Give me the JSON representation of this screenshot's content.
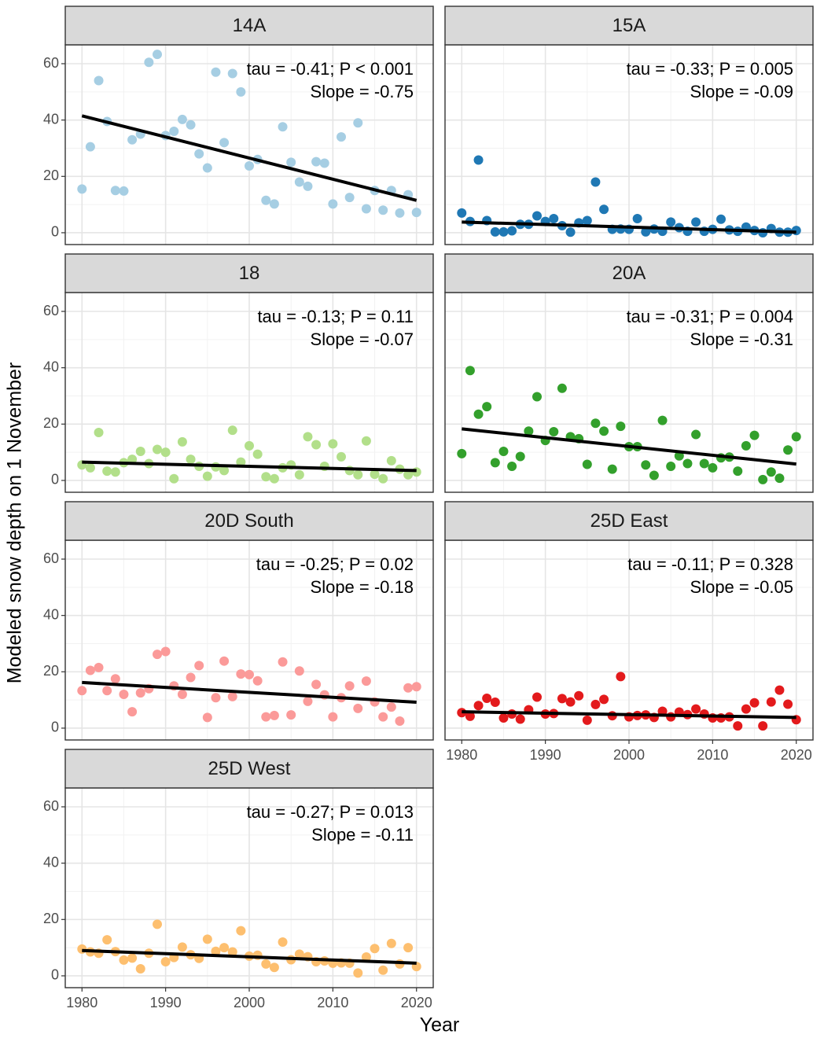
{
  "axis_labels": {
    "x": "Year",
    "y": "Modeled snow depth on 1 November"
  },
  "chart_data": [
    {
      "type": "scatter",
      "title": "14A",
      "color": "#a6cee3",
      "x": [
        1980,
        1981,
        1982,
        1983,
        1984,
        1985,
        1986,
        1987,
        1988,
        1989,
        1990,
        1991,
        1992,
        1993,
        1994,
        1995,
        1996,
        1997,
        1998,
        1999,
        2000,
        2001,
        2002,
        2003,
        2004,
        2005,
        2006,
        2007,
        2008,
        2009,
        2010,
        2011,
        2012,
        2013,
        2014,
        2015,
        2016,
        2017,
        2018,
        2019,
        2020
      ],
      "values": [
        15.5,
        30.5,
        54,
        39.5,
        15,
        14.8,
        33,
        35,
        60.5,
        63.3,
        34.5,
        36,
        40.2,
        38.3,
        28,
        23,
        57,
        32,
        56.5,
        50,
        23.7,
        26,
        11.5,
        10.2,
        37.6,
        25,
        18,
        16.5,
        25.2,
        24.7,
        10.2,
        34,
        12.5,
        39,
        8.5,
        15,
        8,
        15,
        7,
        13.5,
        7.2
      ],
      "trend": {
        "x": [
          1980,
          2020
        ],
        "values": [
          41.5,
          11.5
        ],
        "color": "#000000"
      },
      "annotations": [
        "tau = -0.41; P < 0.001",
        "Slope = -0.75"
      ],
      "xlim": [
        1978,
        2022
      ],
      "xticks": [
        1980,
        1990,
        2000,
        2010,
        2020
      ],
      "ylim": [
        -4.2,
        66.7
      ],
      "yticks": [
        0,
        20,
        40,
        60
      ],
      "grid": true
    },
    {
      "type": "scatter",
      "title": "15A",
      "color": "#1f78b4",
      "x": [
        1980,
        1981,
        1982,
        1983,
        1984,
        1985,
        1986,
        1987,
        1988,
        1989,
        1990,
        1991,
        1992,
        1993,
        1994,
        1995,
        1996,
        1997,
        1998,
        1999,
        2000,
        2001,
        2002,
        2003,
        2004,
        2005,
        2006,
        2007,
        2008,
        2009,
        2010,
        2011,
        2012,
        2013,
        2014,
        2015,
        2016,
        2017,
        2018,
        2019,
        2020
      ],
      "values": [
        7,
        4,
        25.8,
        4.3,
        0.3,
        0.3,
        0.7,
        3,
        3,
        6,
        4,
        5,
        2.5,
        0.2,
        3.5,
        4.3,
        18,
        8.3,
        1.2,
        1.3,
        1.2,
        5,
        0.3,
        1.3,
        0.5,
        3.8,
        1.8,
        0.5,
        3.8,
        0.5,
        1.2,
        4.8,
        1,
        0.5,
        2,
        0.8,
        0,
        1.5,
        0.2,
        0.2,
        0.8
      ],
      "trend": {
        "x": [
          1980,
          2020
        ],
        "values": [
          3.8,
          0.2
        ],
        "color": "#000000"
      },
      "annotations": [
        "tau = -0.33; P = 0.005",
        "Slope = -0.09"
      ],
      "xlim": [
        1978,
        2022
      ],
      "xticks": [
        1980,
        1990,
        2000,
        2010,
        2020
      ],
      "ylim": [
        -4.2,
        66.7
      ],
      "yticks": [
        0,
        20,
        40,
        60
      ],
      "grid": true
    },
    {
      "type": "scatter",
      "title": "18",
      "color": "#b2df8a",
      "x": [
        1980,
        1981,
        1982,
        1983,
        1984,
        1985,
        1986,
        1987,
        1988,
        1989,
        1990,
        1991,
        1992,
        1993,
        1994,
        1995,
        1996,
        1997,
        1998,
        1999,
        2000,
        2001,
        2002,
        2003,
        2004,
        2005,
        2006,
        2007,
        2008,
        2009,
        2010,
        2011,
        2012,
        2013,
        2014,
        2015,
        2016,
        2017,
        2018,
        2019,
        2020
      ],
      "values": [
        5.5,
        4.5,
        17,
        3.3,
        3,
        6.3,
        7.5,
        10.3,
        6,
        11,
        10,
        0.6,
        13.7,
        7.5,
        5,
        1.5,
        4.8,
        3.5,
        17.8,
        6.5,
        12.3,
        9.3,
        1.3,
        0.6,
        4.5,
        5.5,
        2,
        15.5,
        12.7,
        5,
        13,
        8.4,
        3.5,
        2,
        14,
        2.2,
        0.6,
        7,
        4,
        2,
        3
      ],
      "trend": {
        "x": [
          1980,
          2020
        ],
        "values": [
          6.5,
          3.5
        ],
        "color": "#000000"
      },
      "annotations": [
        "tau = -0.13; P = 0.11",
        "Slope = -0.07"
      ],
      "xlim": [
        1978,
        2022
      ],
      "xticks": [
        1980,
        1990,
        2000,
        2010,
        2020
      ],
      "ylim": [
        -4.2,
        66.7
      ],
      "yticks": [
        0,
        20,
        40,
        60
      ],
      "grid": true
    },
    {
      "type": "scatter",
      "title": "20A",
      "color": "#33a02c",
      "x": [
        1980,
        1981,
        1982,
        1983,
        1984,
        1985,
        1986,
        1987,
        1988,
        1989,
        1990,
        1991,
        1992,
        1993,
        1994,
        1995,
        1996,
        1997,
        1998,
        1999,
        2000,
        2001,
        2002,
        2003,
        2004,
        2005,
        2006,
        2007,
        2008,
        2009,
        2010,
        2011,
        2012,
        2013,
        2014,
        2015,
        2016,
        2017,
        2018,
        2019,
        2020
      ],
      "values": [
        9.5,
        39,
        23.5,
        26.2,
        6.3,
        10.3,
        5,
        8.5,
        17.5,
        29.7,
        14.2,
        17.3,
        32.7,
        15.5,
        14.8,
        5.7,
        20.3,
        17.5,
        4,
        19.2,
        12,
        12,
        5.5,
        1.8,
        21.3,
        5,
        8.7,
        6,
        16.3,
        6,
        4.5,
        8,
        8.3,
        3.3,
        12.3,
        16,
        0.3,
        3,
        0.8,
        10.8,
        15.5
      ],
      "trend": {
        "x": [
          1980,
          2020
        ],
        "values": [
          18.3,
          5.8
        ],
        "color": "#000000"
      },
      "annotations": [
        "tau = -0.31; P = 0.004",
        "Slope = -0.31"
      ],
      "xlim": [
        1978,
        2022
      ],
      "xticks": [
        1980,
        1990,
        2000,
        2010,
        2020
      ],
      "ylim": [
        -4.2,
        66.7
      ],
      "yticks": [
        0,
        20,
        40,
        60
      ],
      "grid": true
    },
    {
      "type": "scatter",
      "title": "20D South",
      "color": "#fb9a99",
      "x": [
        1980,
        1981,
        1982,
        1983,
        1984,
        1985,
        1986,
        1987,
        1988,
        1989,
        1990,
        1991,
        1992,
        1993,
        1994,
        1995,
        1996,
        1997,
        1998,
        1999,
        2000,
        2001,
        2002,
        2003,
        2004,
        2005,
        2006,
        2007,
        2008,
        2009,
        2010,
        2011,
        2012,
        2013,
        2014,
        2015,
        2016,
        2017,
        2018,
        2019,
        2020
      ],
      "values": [
        13.3,
        20.5,
        21.5,
        13.3,
        17.5,
        12,
        5.8,
        12.5,
        14,
        26.2,
        27.2,
        15,
        12,
        18,
        22.2,
        3.8,
        10.8,
        23.8,
        11.2,
        19.2,
        19,
        16.8,
        4,
        4.5,
        23.5,
        4.7,
        20.3,
        9.5,
        15.5,
        11.8,
        4,
        10.8,
        15,
        7,
        16.7,
        9.3,
        4,
        7.5,
        2.5,
        14.3,
        14.7
      ],
      "trend": {
        "x": [
          1980,
          2020
        ],
        "values": [
          16.2,
          9.2
        ],
        "color": "#000000"
      },
      "annotations": [
        "tau = -0.25; P = 0.02",
        "Slope = -0.18"
      ],
      "xlim": [
        1978,
        2022
      ],
      "xticks": [
        1980,
        1990,
        2000,
        2010,
        2020
      ],
      "ylim": [
        -4.2,
        66.7
      ],
      "yticks": [
        0,
        20,
        40,
        60
      ],
      "grid": true
    },
    {
      "type": "scatter",
      "title": "25D East",
      "color": "#e31a1c",
      "x": [
        1980,
        1981,
        1982,
        1983,
        1984,
        1985,
        1986,
        1987,
        1988,
        1989,
        1990,
        1991,
        1992,
        1993,
        1994,
        1995,
        1996,
        1997,
        1998,
        1999,
        2000,
        2001,
        2002,
        2003,
        2004,
        2005,
        2006,
        2007,
        2008,
        2009,
        2010,
        2011,
        2012,
        2013,
        2014,
        2015,
        2016,
        2017,
        2018,
        2019,
        2020
      ],
      "values": [
        5.5,
        4.2,
        8,
        10.6,
        9.2,
        3.6,
        5,
        3.2,
        6.5,
        11,
        5,
        5.2,
        10.5,
        9.3,
        11.5,
        2.8,
        8.4,
        10.2,
        4.4,
        18.3,
        4,
        4.5,
        4.7,
        3.8,
        6,
        4,
        5.7,
        4.8,
        6.8,
        5,
        3.6,
        3.6,
        4,
        0.8,
        6.8,
        9,
        0.8,
        9.3,
        13.5,
        8.5,
        3
      ],
      "trend": {
        "x": [
          1980,
          2020
        ],
        "values": [
          5.8,
          3.8
        ],
        "color": "#000000"
      },
      "annotations": [
        "tau = -0.11; P = 0.328",
        "Slope = -0.05"
      ],
      "xlim": [
        1978,
        2022
      ],
      "xticks": [
        1980,
        1990,
        2000,
        2010,
        2020
      ],
      "ylim": [
        -4.2,
        66.7
      ],
      "yticks": [
        0,
        20,
        40,
        60
      ],
      "grid": true
    },
    {
      "type": "scatter",
      "title": "25D West",
      "color": "#fdbf6f",
      "x": [
        1980,
        1981,
        1982,
        1983,
        1984,
        1985,
        1986,
        1987,
        1988,
        1989,
        1990,
        1991,
        1992,
        1993,
        1994,
        1995,
        1996,
        1997,
        1998,
        1999,
        2000,
        2001,
        2002,
        2003,
        2004,
        2005,
        2006,
        2007,
        2008,
        2009,
        2010,
        2011,
        2012,
        2013,
        2014,
        2015,
        2016,
        2017,
        2018,
        2019,
        2020
      ],
      "values": [
        9.5,
        8.5,
        8,
        12.8,
        8.6,
        5.6,
        6.3,
        2.5,
        8,
        18.3,
        5,
        6.5,
        10.2,
        7.5,
        6.2,
        13,
        8.7,
        10,
        8.5,
        16,
        7,
        7.3,
        4.2,
        3,
        12,
        5.7,
        7.7,
        6.8,
        5,
        5.3,
        4.5,
        4.6,
        4.5,
        1,
        6.7,
        9.7,
        2,
        11.5,
        4.2,
        10,
        3.3
      ],
      "trend": {
        "x": [
          1980,
          2020
        ],
        "values": [
          9,
          4.5
        ],
        "color": "#000000"
      },
      "annotations": [
        "tau = -0.27; P = 0.013",
        "Slope = -0.11"
      ],
      "xlim": [
        1978,
        2022
      ],
      "xticks": [
        1980,
        1990,
        2000,
        2010,
        2020
      ],
      "ylim": [
        -4.2,
        66.7
      ],
      "yticks": [
        0,
        20,
        40,
        60
      ],
      "grid": true
    }
  ]
}
